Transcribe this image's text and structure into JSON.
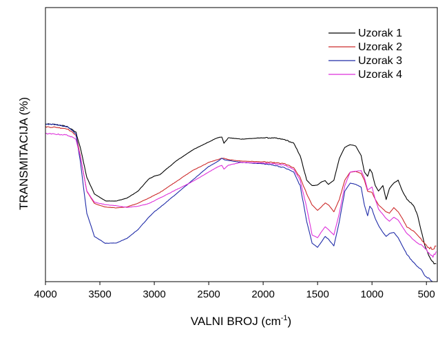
{
  "chart_data": {
    "type": "line",
    "title": "",
    "xlabel": "VALNI BROJ (cm",
    "xlabel_sup": "-1",
    "xlabel_close": ")",
    "ylabel": "TRANSMITACIJA (%)",
    "xlim": [
      4000,
      400
    ],
    "x_reversed": true,
    "ylim": [
      0,
      100
    ],
    "y_tick_labels": false,
    "x_ticks": [
      4000,
      3500,
      3000,
      2500,
      2000,
      1500,
      1000,
      500
    ],
    "x_tick_labels": [
      "4000",
      "3500",
      "3000",
      "2500",
      "2000",
      "1500",
      "1000",
      "500"
    ],
    "grid": false,
    "legend_position": "top-right",
    "series": [
      {
        "name": "Uzorak 1",
        "color": "#000000",
        "x": [
          4000,
          3900,
          3800,
          3720,
          3680,
          3620,
          3550,
          3450,
          3350,
          3250,
          3150,
          3050,
          3000,
          2950,
          2800,
          2650,
          2500,
          2420,
          2380,
          2360,
          2320,
          2200,
          2000,
          1900,
          1800,
          1720,
          1660,
          1600,
          1550,
          1500,
          1460,
          1430,
          1400,
          1350,
          1300,
          1250,
          1200,
          1150,
          1100,
          1070,
          1040,
          1020,
          1000,
          970,
          940,
          900,
          870,
          840,
          800,
          760,
          720,
          680,
          620,
          580,
          550,
          520,
          480,
          440,
          410
        ],
        "y": [
          57.5,
          57.3,
          56.6,
          54.5,
          49,
          38,
          32,
          29.5,
          29.4,
          30.5,
          33,
          37.5,
          38.5,
          39,
          44,
          48,
          51,
          52.5,
          52.8,
          50.5,
          52.5,
          52,
          52.5,
          52.4,
          51.8,
          50.5,
          46,
          37,
          35,
          35.3,
          36.5,
          36.8,
          35.5,
          37,
          45,
          49,
          50,
          49.5,
          46,
          40,
          38.5,
          41,
          39.8,
          35,
          33,
          35,
          30,
          34,
          36,
          37,
          33,
          30,
          28,
          24,
          19,
          14,
          10,
          7,
          6.5
        ]
      },
      {
        "name": "Uzorak 2",
        "color": "#cc2a2a",
        "x": [
          4000,
          3900,
          3800,
          3720,
          3680,
          3620,
          3550,
          3450,
          3350,
          3250,
          3150,
          3050,
          3000,
          2950,
          2800,
          2650,
          2500,
          2420,
          2380,
          2360,
          2320,
          2200,
          2000,
          1900,
          1800,
          1720,
          1660,
          1600,
          1550,
          1500,
          1460,
          1430,
          1400,
          1350,
          1300,
          1250,
          1200,
          1150,
          1100,
          1070,
          1040,
          1020,
          1000,
          970,
          940,
          900,
          870,
          840,
          800,
          760,
          720,
          680,
          620,
          580,
          550,
          520,
          480,
          440,
          410
        ],
        "y": [
          56.5,
          56.3,
          55.8,
          53.5,
          46,
          33,
          28.5,
          27.2,
          26.9,
          27.3,
          28.6,
          30.5,
          31.5,
          32.5,
          36.5,
          40.5,
          43.5,
          44.5,
          45,
          45,
          44.5,
          44,
          43.7,
          43.4,
          43,
          41.5,
          38,
          32,
          28,
          26,
          27.5,
          28.7,
          28,
          25.5,
          30,
          37,
          40,
          40.2,
          39.5,
          37,
          33,
          32.8,
          32.5,
          30,
          28,
          26.5,
          25.5,
          25,
          27,
          25.5,
          23,
          20,
          18.5,
          17,
          15.5,
          14,
          12.5,
          12,
          13
        ]
      },
      {
        "name": "Uzorak 3",
        "color": "#1f2ba8",
        "x": [
          4000,
          3900,
          3800,
          3720,
          3680,
          3620,
          3550,
          3450,
          3350,
          3250,
          3150,
          3050,
          3000,
          2950,
          2800,
          2650,
          2500,
          2420,
          2380,
          2360,
          2320,
          2200,
          2000,
          1900,
          1800,
          1720,
          1660,
          1600,
          1550,
          1500,
          1460,
          1430,
          1400,
          1350,
          1300,
          1250,
          1200,
          1150,
          1100,
          1070,
          1040,
          1020,
          1000,
          970,
          940,
          900,
          870,
          840,
          800,
          760,
          720,
          680,
          620,
          580,
          550,
          520,
          480,
          440,
          410
        ],
        "y": [
          57.5,
          57.3,
          56.5,
          54,
          44,
          25,
          16.5,
          14,
          14.1,
          15.8,
          19,
          23.5,
          25.5,
          27,
          32,
          37,
          42,
          43.8,
          45,
          44.5,
          44.2,
          43.5,
          43,
          42.5,
          41.5,
          40,
          35,
          22,
          14,
          12.5,
          14.8,
          16.5,
          15.5,
          13,
          22,
          33,
          36,
          35.5,
          34.5,
          28,
          24,
          27.5,
          26.5,
          23,
          20.5,
          18,
          16.5,
          17.5,
          18,
          16,
          13,
          10,
          7,
          5.5,
          4.5,
          2.5,
          1,
          0,
          -0.8
        ]
      },
      {
        "name": "Uzorak 4",
        "color": "#dd2fd9",
        "x": [
          4000,
          3900,
          3800,
          3720,
          3680,
          3620,
          3550,
          3450,
          3350,
          3250,
          3150,
          3050,
          3000,
          2950,
          2800,
          2650,
          2500,
          2420,
          2380,
          2360,
          2320,
          2200,
          2000,
          1900,
          1800,
          1720,
          1660,
          1600,
          1550,
          1500,
          1460,
          1430,
          1400,
          1350,
          1300,
          1250,
          1200,
          1150,
          1100,
          1070,
          1040,
          1020,
          1000,
          970,
          940,
          900,
          870,
          840,
          800,
          760,
          720,
          680,
          620,
          580,
          550,
          520,
          480,
          440,
          410
        ],
        "y": [
          54,
          53.8,
          53.5,
          52,
          46,
          33,
          29,
          28.1,
          27.7,
          27.1,
          27.5,
          28.5,
          29.5,
          30.5,
          33.5,
          36.5,
          40,
          41.8,
          42.5,
          41,
          42.5,
          43.5,
          43.3,
          43,
          42.5,
          41,
          37,
          27,
          17,
          16,
          18.5,
          20,
          19,
          17,
          25,
          35,
          40,
          40.3,
          40.5,
          38,
          33.5,
          34,
          34.5,
          30,
          26.5,
          24.5,
          23,
          22,
          23.5,
          22.5,
          20,
          17.5,
          15.5,
          14,
          13.5,
          12.5,
          10.5,
          9,
          11
        ]
      }
    ]
  }
}
